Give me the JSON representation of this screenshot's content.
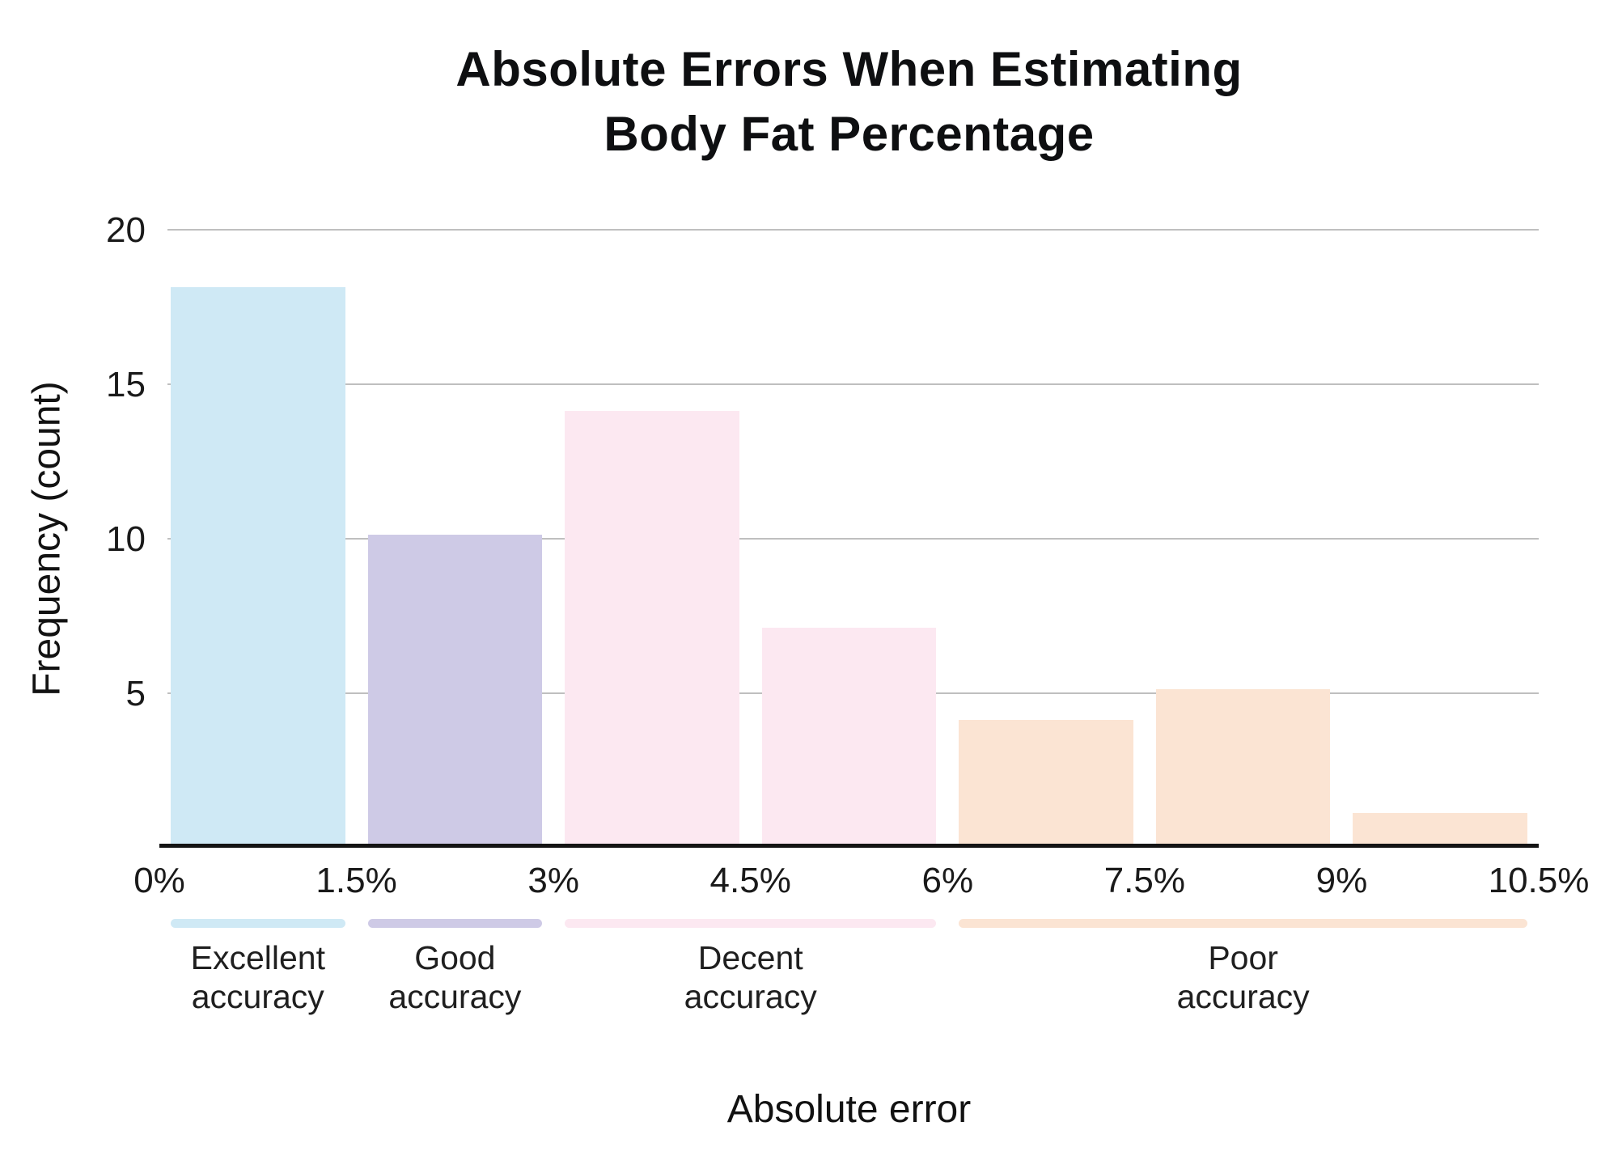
{
  "chart_data": {
    "type": "bar",
    "title": "Absolute Errors When Estimating Body Fat Percentage",
    "title_lines": [
      "Absolute Errors When Estimating",
      "Body Fat Percentage"
    ],
    "xlabel": "Absolute error",
    "ylabel": "Frequency (count)",
    "bins": [
      "0-1.5%",
      "1.5-3%",
      "3-4.5%",
      "4.5-6%",
      "6-7.5%",
      "7.5-9%",
      "9-10.5%"
    ],
    "values": [
      18,
      10,
      14,
      7,
      4,
      5,
      1
    ],
    "bar_colors": [
      "#cfe9f5",
      "#cecae6",
      "#fce8f1",
      "#fce8f1",
      "#fbe4d3",
      "#fbe4d3",
      "#fbe4d3"
    ],
    "xticks": [
      "0%",
      "1.5%",
      "3%",
      "4.5%",
      "6%",
      "7.5%",
      "9%",
      "10.5%"
    ],
    "yticks": [
      5,
      10,
      15,
      20
    ],
    "ylim": [
      0,
      20
    ],
    "grid": "horizontal-only",
    "legend_position": "bottom",
    "legend": [
      {
        "line1": "Excellent",
        "line2": "accuracy",
        "color": "#cfe9f5",
        "start_bin": 0,
        "span_bins": 1
      },
      {
        "line1": "Good",
        "line2": "accuracy",
        "color": "#cecae6",
        "start_bin": 1,
        "span_bins": 1
      },
      {
        "line1": "Decent",
        "line2": "accuracy",
        "color": "#fce8f1",
        "start_bin": 2,
        "span_bins": 2
      },
      {
        "line1": "Poor",
        "line2": "accuracy",
        "color": "#fbe4d3",
        "start_bin": 4,
        "span_bins": 3
      }
    ],
    "colors": {
      "grid": "#bfbfbf",
      "axis": "#141414",
      "text": "#1a1a1a"
    }
  }
}
